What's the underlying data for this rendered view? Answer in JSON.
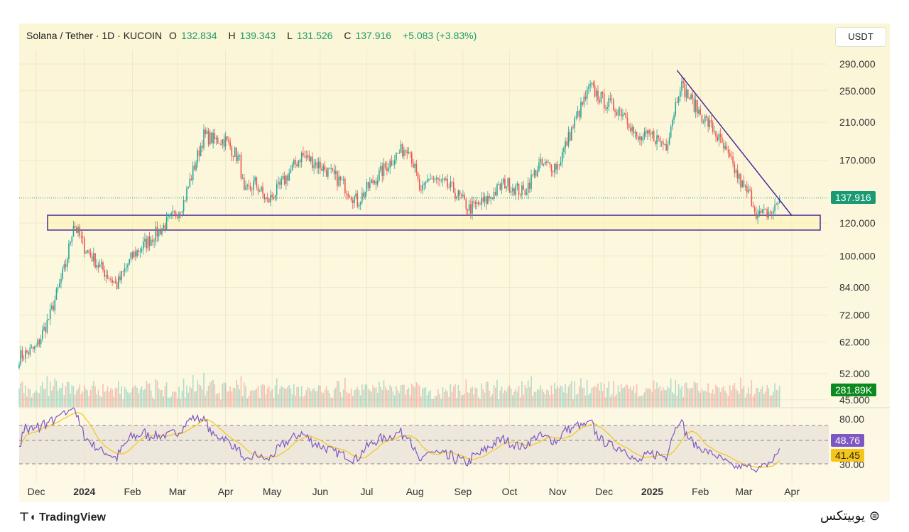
{
  "header": {
    "pair": "Solana / Tether · 1D · KUCOIN",
    "open_label": "O",
    "open": "132.834",
    "high_label": "H",
    "high": "139.343",
    "low_label": "L",
    "low": "131.526",
    "close_label": "C",
    "close": "137.916",
    "change": "+5.083 (+3.83%)"
  },
  "currency": "USDT",
  "tags": {
    "price": "137.916",
    "volume": "281.89K",
    "rsi": "48.76",
    "rsi_ma": "41.45"
  },
  "footer": {
    "logo": "TradingView",
    "brand": "یوبیتکس"
  },
  "colors": {
    "up": "#26a69a",
    "down": "#ef5350",
    "rsi": "#7e57c2",
    "rsi_ma": "#f5c518",
    "zone": "#4b2a9a",
    "price_tag": "#1a9a73",
    "volume_tag": "#0b8a1f"
  },
  "chart_data": {
    "type": "candlestick",
    "title": "Solana / Tether · 1D · KUCOIN",
    "yscale": "log",
    "price_ticks": [
      "290.000",
      "250.000",
      "210.000",
      "170.000",
      "120.000",
      "100.000",
      "84.000",
      "72.000",
      "62.000",
      "52.000",
      "45.000"
    ],
    "rsi_ticks": [
      "80.00",
      "30.00"
    ],
    "x_ticks": [
      "Dec",
      "2024",
      "Feb",
      "Mar",
      "Apr",
      "May",
      "Jun",
      "Jul",
      "Aug",
      "Sep",
      "Oct",
      "Nov",
      "Dec",
      "2025",
      "Feb",
      "Mar",
      "Apr"
    ],
    "close_keypoints": [
      [
        "2023-11-20",
        57
      ],
      [
        "2023-12-01",
        60
      ],
      [
        "2023-12-10",
        72
      ],
      [
        "2023-12-20",
        95
      ],
      [
        "2023-12-25",
        120
      ],
      [
        "2024-01-01",
        105
      ],
      [
        "2024-01-10",
        95
      ],
      [
        "2024-01-22",
        85
      ],
      [
        "2024-02-01",
        100
      ],
      [
        "2024-02-15",
        112
      ],
      [
        "2024-02-28",
        125
      ],
      [
        "2024-03-05",
        135
      ],
      [
        "2024-03-18",
        195
      ],
      [
        "2024-03-25",
        190
      ],
      [
        "2024-04-01",
        190
      ],
      [
        "2024-04-10",
        170
      ],
      [
        "2024-04-13",
        140
      ],
      [
        "2024-04-20",
        150
      ],
      [
        "2024-04-28",
        135
      ],
      [
        "2024-05-05",
        145
      ],
      [
        "2024-05-20",
        175
      ],
      [
        "2024-06-01",
        165
      ],
      [
        "2024-06-15",
        150
      ],
      [
        "2024-06-25",
        135
      ],
      [
        "2024-07-01",
        145
      ],
      [
        "2024-07-20",
        175
      ],
      [
        "2024-07-28",
        185
      ],
      [
        "2024-08-05",
        140
      ],
      [
        "2024-08-10",
        155
      ],
      [
        "2024-08-25",
        145
      ],
      [
        "2024-09-05",
        130
      ],
      [
        "2024-09-15",
        135
      ],
      [
        "2024-09-28",
        150
      ],
      [
        "2024-10-10",
        142
      ],
      [
        "2024-10-20",
        165
      ],
      [
        "2024-11-01",
        165
      ],
      [
        "2024-11-12",
        210
      ],
      [
        "2024-11-22",
        255
      ],
      [
        "2024-12-01",
        235
      ],
      [
        "2024-12-15",
        220
      ],
      [
        "2024-12-22",
        190
      ],
      [
        "2025-01-01",
        195
      ],
      [
        "2025-01-10",
        185
      ],
      [
        "2025-01-19",
        260
      ],
      [
        "2025-01-25",
        240
      ],
      [
        "2025-02-01",
        220
      ],
      [
        "2025-02-10",
        200
      ],
      [
        "2025-02-20",
        170
      ],
      [
        "2025-03-01",
        145
      ],
      [
        "2025-03-05",
        140
      ],
      [
        "2025-03-10",
        125
      ],
      [
        "2025-03-20",
        128
      ],
      [
        "2025-03-24",
        137.916
      ]
    ],
    "support_zone": [
      115.4,
      125.3
    ],
    "trendline": [
      [
        "2025-01-17",
        280
      ],
      [
        "2025-04-01",
        125
      ]
    ],
    "last_price": 137.916,
    "rsi_last": 48.76,
    "rsi_ma_last": 41.45
  }
}
